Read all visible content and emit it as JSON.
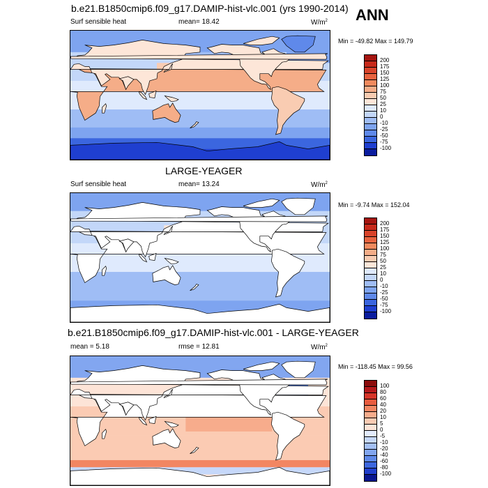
{
  "title": "b.e21.B1850cmip6.f09_g17.DAMIP-hist-vlc.001 (yrs 1990-2014)",
  "season": "ANN",
  "panels": [
    {
      "title": "",
      "variable": "Surf sensible heat",
      "left_label": "",
      "mean_label": "mean=  18.42",
      "rmse_label": "",
      "units": "W/m",
      "units_exp": "2",
      "minmax": "Min = -49.82 Max = 149.79",
      "colorbar": {
        "labels": [
          "200",
          "175",
          "150",
          "125",
          "100",
          "75",
          "50",
          "25",
          "10",
          "0",
          "-10",
          "-25",
          "-50",
          "-75",
          "-100"
        ],
        "colors": [
          "#a51510",
          "#c72a1b",
          "#d9442b",
          "#e8633f",
          "#f08a5e",
          "#f5ad88",
          "#f9ccb2",
          "#fde6d8",
          "#dfeafd",
          "#c3d7f9",
          "#9fbdf5",
          "#7ea4f0",
          "#5f89ea",
          "#3b66df",
          "#1f3fd0",
          "#0b1d9e"
        ],
        "field": "control"
      }
    },
    {
      "title": "LARGE-YEAGER",
      "variable": "Surf sensible heat",
      "left_label": "",
      "mean_label": "mean=  13.24",
      "rmse_label": "",
      "units": "W/m",
      "units_exp": "2",
      "minmax": "Min =  -9.74 Max = 152.04",
      "colorbar": {
        "labels": [
          "200",
          "175",
          "150",
          "125",
          "100",
          "75",
          "50",
          "25",
          "10",
          "0",
          "-10",
          "-25",
          "-50",
          "-75",
          "-100"
        ],
        "colors": [
          "#a51510",
          "#c72a1b",
          "#d9442b",
          "#e8633f",
          "#f08a5e",
          "#f5ad88",
          "#f9ccb2",
          "#fde6d8",
          "#dfeafd",
          "#c3d7f9",
          "#9fbdf5",
          "#7ea4f0",
          "#5f89ea",
          "#3b66df",
          "#1f3fd0",
          "#0b1d9e"
        ],
        "field": "obs"
      }
    },
    {
      "title": "b.e21.B1850cmip6.f09_g17.DAMIP-hist-vlc.001 - LARGE-YEAGER",
      "variable": "",
      "left_label": "mean =   5.18",
      "mean_label": "",
      "rmse_label": "rmse =  12.81",
      "units": "W/m",
      "units_exp": "2",
      "minmax": "Min = -118.45 Max =  99.56",
      "colorbar": {
        "labels": [
          "100",
          "80",
          "60",
          "40",
          "20",
          "10",
          "5",
          "0",
          "-5",
          "-10",
          "-20",
          "-40",
          "-60",
          "-80",
          "-100"
        ],
        "colors": [
          "#8c0d0d",
          "#b5191c",
          "#d6362a",
          "#e85c3f",
          "#f28662",
          "#f7ac8c",
          "#fbcbb3",
          "#fde4d7",
          "#e3ecfd",
          "#c6d8fa",
          "#a3c0f5",
          "#82a6f0",
          "#5f89e9",
          "#3d67de",
          "#213fcc",
          "#0a178f"
        ],
        "field": "diff"
      }
    }
  ]
}
